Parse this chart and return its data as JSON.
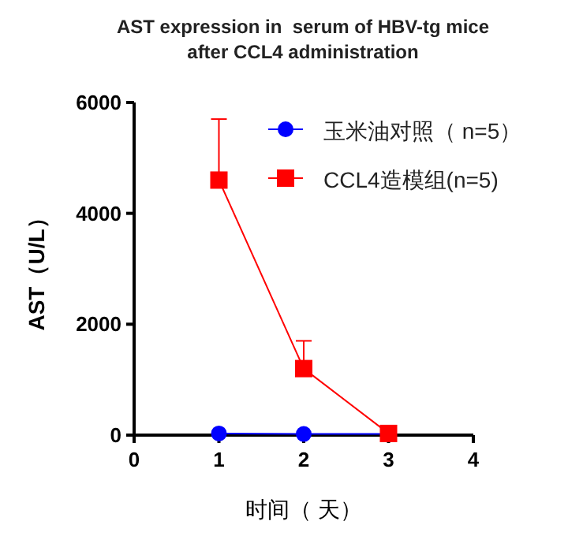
{
  "chart_data": {
    "type": "line",
    "title": "AST expression in  serum of HBV-tg mice after CCL4 administration",
    "xlabel": "时间（ 天）",
    "ylabel": "AST（U/L）",
    "x": [
      1,
      2,
      3
    ],
    "series": [
      {
        "name": "玉米油对照（ n=5）",
        "color": "#0000ff",
        "marker": "circle",
        "values": [
          30,
          20,
          20
        ]
      },
      {
        "name": "CCL4造模组(n=5)",
        "color": "#ff0000",
        "marker": "square",
        "values": [
          4600,
          1200,
          30
        ],
        "errors": [
          [
            4600,
            5700
          ],
          [
            1200,
            1700
          ],
          [
            30,
            60
          ]
        ]
      }
    ],
    "xlim": [
      0,
      4
    ],
    "xticks": [
      0,
      1,
      2,
      3,
      4
    ],
    "ylim": [
      0,
      6000
    ],
    "yticks": [
      0,
      2000,
      4000,
      6000
    ],
    "grid": false,
    "legend": "top right"
  }
}
